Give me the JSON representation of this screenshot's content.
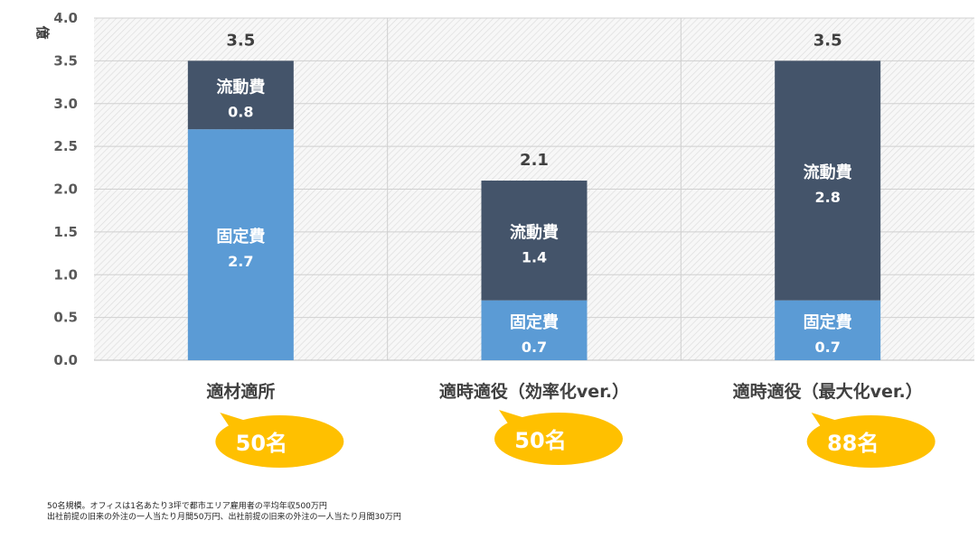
{
  "chart_data": {
    "type": "bar",
    "stacked": true,
    "categories": [
      "適材適所",
      "適時適役（効率化ver.）",
      "適時適役（最大化ver.）"
    ],
    "series": [
      {
        "name": "固定費",
        "values": [
          2.7,
          0.7,
          0.7
        ],
        "color": "#5B9BD5"
      },
      {
        "name": "流動費",
        "values": [
          0.8,
          1.4,
          2.8
        ],
        "color": "#44546A"
      }
    ],
    "totals": [
      "3.5",
      "2.1",
      "3.5"
    ],
    "ylabel": "億",
    "ylim": [
      0,
      4.0
    ],
    "yticks": [
      "0.0",
      "0.5",
      "1.0",
      "1.5",
      "2.0",
      "2.5",
      "3.0",
      "3.5",
      "4.0"
    ],
    "grid": true,
    "plot_background": "hatched light gray"
  },
  "bubbles": {
    "labels": [
      "50名",
      "50名",
      "88名"
    ],
    "color": "#FFC000"
  },
  "notes": [
    "50名規模。オフィスは1名あたり3坪で都市エリア雇用者の平均年収500万円",
    "出社前提の旧来の外注の一人当たり月間50万円、出社前提の旧来の外注の一人当たり月間30万円"
  ]
}
